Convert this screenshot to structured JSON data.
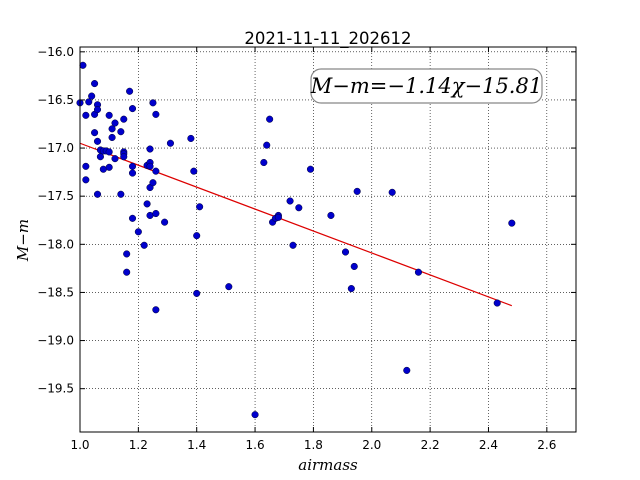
{
  "chart_data": {
    "type": "scatter",
    "title": "2021-11-11_202612",
    "xlabel": "airmass",
    "ylabel": "M−m",
    "xlim": [
      1.0,
      2.7
    ],
    "ylim": [
      -15.95,
      -19.95
    ],
    "y_axis_inverted": true,
    "grid": true,
    "grid_style": "dotted",
    "xticks": [
      "1.0",
      "1.2",
      "1.4",
      "1.6",
      "1.8",
      "2.0",
      "2.2",
      "2.4",
      "2.6"
    ],
    "xtick_values": [
      1.0,
      1.2,
      1.4,
      1.6,
      1.8,
      2.0,
      2.2,
      2.4,
      2.6
    ],
    "yticks": [
      "−16.0",
      "−16.5",
      "−17.0",
      "−17.5",
      "−18.0",
      "−18.5",
      "−19.0",
      "−19.5"
    ],
    "ytick_values": [
      -16.0,
      -16.5,
      -17.0,
      -17.5,
      -18.0,
      -18.5,
      -19.0,
      -19.5
    ],
    "annotation": "M−m=−1.14χ−15.81",
    "annotation_placement": "top-right",
    "colors": {
      "points": "#0000cc",
      "fit_line": "#dd0000",
      "grid": "#000000",
      "frame": "#000000"
    },
    "fit": {
      "slope": -1.14,
      "intercept": -15.81,
      "x_range": [
        1.0,
        2.48
      ]
    },
    "points": [
      [
        1.0,
        -16.53
      ],
      [
        1.01,
        -16.14
      ],
      [
        1.02,
        -16.66
      ],
      [
        1.02,
        -17.19
      ],
      [
        1.02,
        -17.33
      ],
      [
        1.03,
        -16.52
      ],
      [
        1.04,
        -16.46
      ],
      [
        1.05,
        -16.33
      ],
      [
        1.05,
        -16.65
      ],
      [
        1.05,
        -16.84
      ],
      [
        1.06,
        -16.55
      ],
      [
        1.06,
        -16.6
      ],
      [
        1.06,
        -16.93
      ],
      [
        1.06,
        -17.48
      ],
      [
        1.07,
        -17.02
      ],
      [
        1.07,
        -17.09
      ],
      [
        1.08,
        -17.22
      ],
      [
        1.08,
        -17.03
      ],
      [
        1.09,
        -17.03
      ],
      [
        1.1,
        -16.66
      ],
      [
        1.1,
        -17.04
      ],
      [
        1.1,
        -17.2
      ],
      [
        1.11,
        -16.8
      ],
      [
        1.11,
        -16.89
      ],
      [
        1.12,
        -16.74
      ],
      [
        1.12,
        -17.11
      ],
      [
        1.14,
        -16.83
      ],
      [
        1.14,
        -17.48
      ],
      [
        1.15,
        -17.04
      ],
      [
        1.15,
        -17.06
      ],
      [
        1.15,
        -17.09
      ],
      [
        1.15,
        -16.7
      ],
      [
        1.16,
        -18.1
      ],
      [
        1.16,
        -18.29
      ],
      [
        1.17,
        -16.41
      ],
      [
        1.18,
        -16.59
      ],
      [
        1.18,
        -17.19
      ],
      [
        1.18,
        -17.26
      ],
      [
        1.18,
        -17.73
      ],
      [
        1.2,
        -17.87
      ],
      [
        1.22,
        -18.01
      ],
      [
        1.23,
        -17.18
      ],
      [
        1.23,
        -17.58
      ],
      [
        1.24,
        -17.01
      ],
      [
        1.24,
        -17.15
      ],
      [
        1.24,
        -17.19
      ],
      [
        1.24,
        -17.41
      ],
      [
        1.24,
        -17.7
      ],
      [
        1.25,
        -17.36
      ],
      [
        1.25,
        -16.53
      ],
      [
        1.26,
        -17.24
      ],
      [
        1.26,
        -17.68
      ],
      [
        1.26,
        -16.65
      ],
      [
        1.26,
        -18.68
      ],
      [
        1.29,
        -17.77
      ],
      [
        1.31,
        -16.95
      ],
      [
        1.38,
        -16.9
      ],
      [
        1.39,
        -17.24
      ],
      [
        1.4,
        -17.91
      ],
      [
        1.4,
        -18.51
      ],
      [
        1.41,
        -17.61
      ],
      [
        1.51,
        -18.44
      ],
      [
        1.6,
        -19.77
      ],
      [
        1.63,
        -17.15
      ],
      [
        1.64,
        -16.97
      ],
      [
        1.65,
        -16.7
      ],
      [
        1.66,
        -17.77
      ],
      [
        1.67,
        -17.73
      ],
      [
        1.68,
        -17.7
      ],
      [
        1.68,
        -17.72
      ],
      [
        1.72,
        -17.55
      ],
      [
        1.73,
        -18.01
      ],
      [
        1.75,
        -17.62
      ],
      [
        1.79,
        -17.22
      ],
      [
        1.86,
        -17.7
      ],
      [
        1.91,
        -18.08
      ],
      [
        1.93,
        -18.46
      ],
      [
        1.94,
        -18.23
      ],
      [
        1.95,
        -17.45
      ],
      [
        2.07,
        -17.46
      ],
      [
        2.12,
        -19.31
      ],
      [
        2.16,
        -18.29
      ],
      [
        2.43,
        -18.61
      ],
      [
        2.48,
        -17.78
      ]
    ]
  }
}
